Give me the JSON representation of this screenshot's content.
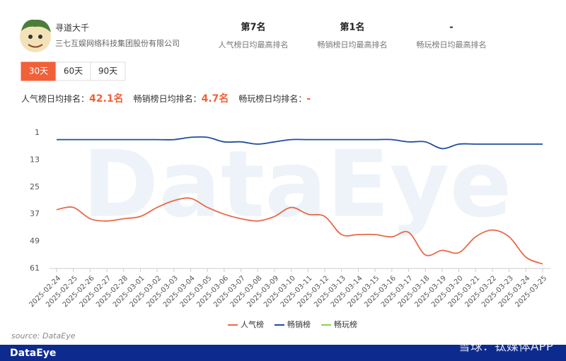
{
  "app": {
    "name": "寻道大千",
    "company": "三七互娱网络科技集团股份有限公司"
  },
  "stats": [
    {
      "value": "第7名",
      "label": "人气榜日均最高排名"
    },
    {
      "value": "第1名",
      "label": "畅销榜日均最高排名"
    },
    {
      "value": "-",
      "label": "畅玩榜日均最高排名"
    }
  ],
  "tabs": [
    "30天",
    "60天",
    "90天"
  ],
  "active_tab": 0,
  "summary": [
    {
      "label": "人气榜日均排名：",
      "value": "42.1名"
    },
    {
      "label": "畅销榜日均排名：",
      "value": "4.7名"
    },
    {
      "label": "畅玩榜日均排名：",
      "value": "-"
    }
  ],
  "watermark": "DataEye",
  "chart_data": {
    "type": "line",
    "x": [
      "2025-02-24",
      "2025-02-25",
      "2025-02-26",
      "2025-02-27",
      "2025-02-28",
      "2025-03-01",
      "2025-03-02",
      "2025-03-03",
      "2025-03-04",
      "2025-03-05",
      "2025-03-06",
      "2025-03-07",
      "2025-03-08",
      "2025-03-09",
      "2025-03-10",
      "2025-03-11",
      "2025-03-12",
      "2025-03-13",
      "2025-03-14",
      "2025-03-15",
      "2025-03-16",
      "2025-03-17",
      "2025-03-18",
      "2025-03-19",
      "2025-03-20",
      "2025-03-21",
      "2025-03-22",
      "2025-03-23",
      "2025-03-24",
      "2025-03-25"
    ],
    "series": [
      {
        "name": "人气榜",
        "color": "#e8694a",
        "values": [
          35,
          34,
          39,
          40,
          39,
          38,
          34,
          31,
          30,
          34,
          37,
          39,
          40,
          38,
          34,
          37,
          38,
          46,
          46,
          46,
          47,
          45,
          55,
          53,
          54,
          47,
          44,
          47,
          56,
          59
        ]
      },
      {
        "name": "畅销榜",
        "color": "#1f4e9c",
        "values": [
          4,
          4,
          4,
          4,
          4,
          4,
          4,
          4,
          3,
          3,
          5,
          5,
          6,
          5,
          4,
          4,
          4,
          4,
          4,
          4,
          4,
          5,
          5,
          8,
          6,
          6,
          6,
          6,
          6,
          6
        ]
      },
      {
        "name": "畅玩榜",
        "color": "#8fd14f",
        "values": [
          null,
          null,
          null,
          null,
          null,
          null,
          null,
          null,
          null,
          null,
          null,
          null,
          null,
          null,
          null,
          null,
          null,
          null,
          null,
          null,
          null,
          null,
          null,
          null,
          null,
          null,
          null,
          null,
          null,
          null
        ]
      }
    ],
    "ylim": [
      61,
      1
    ],
    "yticks": [
      1,
      13,
      25,
      37,
      49,
      61
    ],
    "legend": "bottom"
  },
  "source": "source:  DataEye",
  "footer": {
    "brand": "DataEye",
    "watermark": "雪球：钛媒体APP"
  }
}
